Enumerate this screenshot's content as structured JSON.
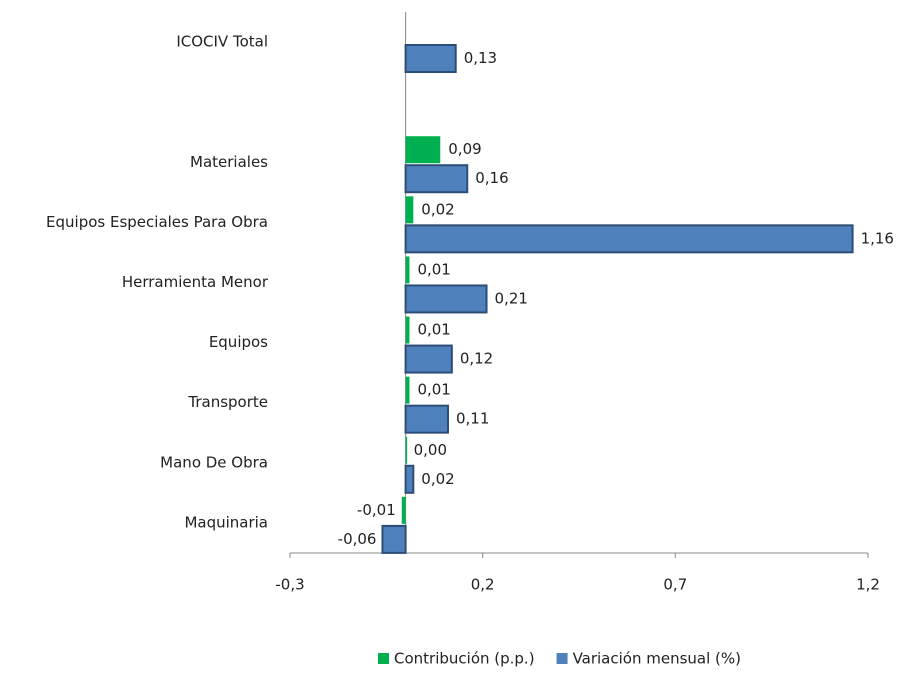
{
  "chart_data": {
    "type": "bar",
    "orientation": "horizontal",
    "categories": [
      "ICOCIV Total",
      null,
      "Materiales",
      "Equipos Especiales Para Obra",
      "Herramienta Menor",
      "Equipos",
      "Transporte",
      "Mano De Obra",
      "Maquinaria"
    ],
    "series": [
      {
        "name": "Contribución (p.p.)",
        "color": "#00b050",
        "values": [
          null,
          null,
          0.09,
          0.02,
          0.01,
          0.01,
          0.01,
          0.0,
          -0.01
        ],
        "value_labels": [
          null,
          null,
          "0,09",
          "0,02",
          "0,01",
          "0,01",
          "0,01",
          "0,00",
          "-0,01"
        ]
      },
      {
        "name": "Variación mensual (%)",
        "color": "#4f81bd",
        "values": [
          0.13,
          null,
          0.16,
          1.16,
          0.21,
          0.12,
          0.11,
          0.02,
          -0.06
        ],
        "value_labels": [
          "0,13",
          null,
          "0,16",
          "1,16",
          "0,21",
          "0,12",
          "0,11",
          "0,02",
          "-0,06"
        ]
      }
    ],
    "xlim": [
      -0.3,
      1.2
    ],
    "xticks": [
      {
        "value": -0.3,
        "label": "-0,3"
      },
      {
        "value": 0.2,
        "label": "0,2"
      },
      {
        "value": 0.7,
        "label": "0,7"
      },
      {
        "value": 1.2,
        "label": "1,2"
      }
    ],
    "legend": "bottom"
  }
}
